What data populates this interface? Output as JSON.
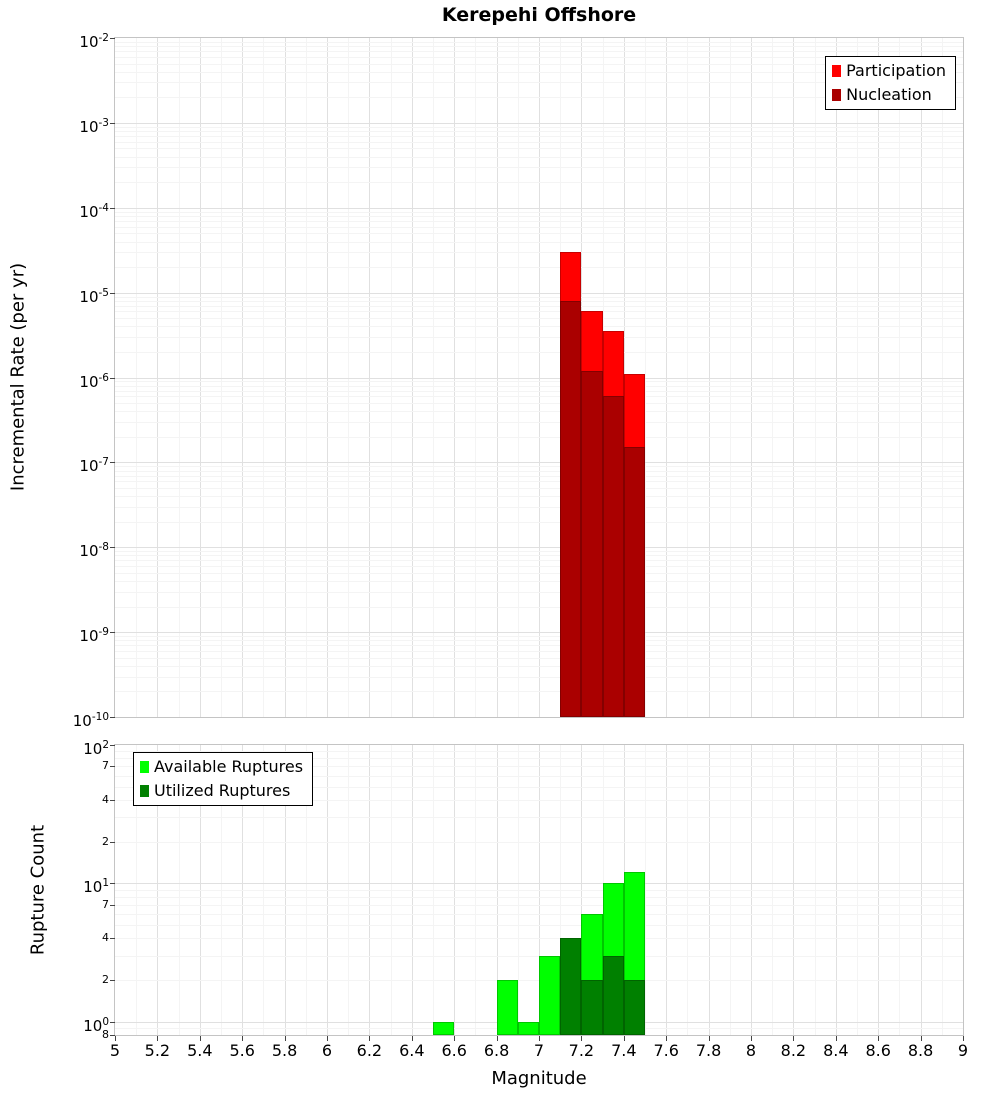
{
  "figure": {
    "background": "#ffffff"
  },
  "chart_data": [
    {
      "type": "bar",
      "title": "Kerepehi Offshore",
      "ylabel": "Incremental Rate (per yr)",
      "xlabel": "",
      "yscale": "log",
      "xlim": [
        5,
        9
      ],
      "ylim": [
        1e-10,
        0.01
      ],
      "bar_width": 0.1,
      "grid": true,
      "legend_position": "top-right",
      "y_ticks": [
        {
          "v": 0.01,
          "exp": "-2"
        },
        {
          "v": 0.001,
          "exp": "-3"
        },
        {
          "v": 0.0001,
          "exp": "-4"
        },
        {
          "v": 1e-05,
          "exp": "-5"
        },
        {
          "v": 1e-06,
          "exp": "-6"
        },
        {
          "v": 1e-07,
          "exp": "-7"
        },
        {
          "v": 1e-08,
          "exp": "-8"
        },
        {
          "v": 1e-09,
          "exp": "-9"
        },
        {
          "v": 1e-10,
          "exp": "-10"
        }
      ],
      "series": [
        {
          "name": "Participation",
          "color": "#ff0000",
          "x": [
            7.15,
            7.25,
            7.35,
            7.45
          ],
          "values": [
            3e-05,
            6e-06,
            3.5e-06,
            1.1e-06
          ]
        },
        {
          "name": "Nucleation",
          "color": "#aa0000",
          "x": [
            7.15,
            7.25,
            7.35,
            7.45
          ],
          "values": [
            8e-06,
            1.2e-06,
            6e-07,
            1.5e-07
          ]
        }
      ]
    },
    {
      "type": "bar",
      "title": "",
      "ylabel": "Rupture Count",
      "xlabel": "Magnitude",
      "yscale": "log",
      "xlim": [
        5,
        9
      ],
      "ylim": [
        0.8,
        100
      ],
      "bar_width": 0.1,
      "grid": true,
      "legend_position": "top-left",
      "y_ticks": [
        {
          "v": 100,
          "exp": "2"
        },
        {
          "v": 70,
          "t": "7"
        },
        {
          "v": 40,
          "t": "4"
        },
        {
          "v": 20,
          "t": "2"
        },
        {
          "v": 10,
          "exp": "1"
        },
        {
          "v": 7,
          "t": "7"
        },
        {
          "v": 4,
          "t": "4"
        },
        {
          "v": 2,
          "t": "2"
        },
        {
          "v": 1,
          "exp": "0"
        },
        {
          "v": 0.8,
          "t": "8"
        }
      ],
      "x_ticks": [
        "5",
        "5.2",
        "5.4",
        "5.6",
        "5.8",
        "6",
        "6.2",
        "6.4",
        "6.6",
        "6.8",
        "7",
        "7.2",
        "7.4",
        "7.6",
        "7.8",
        "8",
        "8.2",
        "8.4",
        "8.6",
        "8.8",
        "9"
      ],
      "series": [
        {
          "name": "Available Ruptures",
          "color": "#00ff00",
          "x": [
            6.55,
            6.85,
            6.95,
            7.05,
            7.15,
            7.25,
            7.35,
            7.45
          ],
          "values": [
            1,
            2,
            1,
            3,
            4,
            6,
            10,
            12
          ]
        },
        {
          "name": "Utilized Ruptures",
          "color": "#008000",
          "x": [
            7.15,
            7.25,
            7.35,
            7.45
          ],
          "values": [
            4,
            2,
            3,
            2
          ]
        }
      ]
    }
  ]
}
